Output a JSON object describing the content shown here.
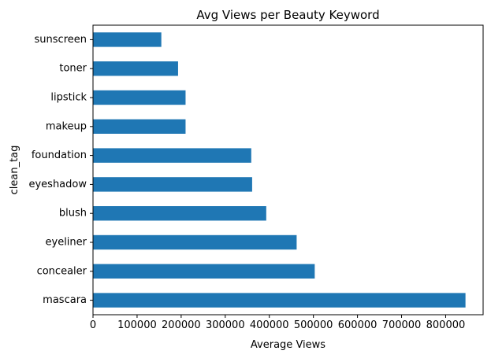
{
  "chart_data": {
    "type": "bar",
    "orientation": "horizontal",
    "title": "Avg Views per Beauty Keyword",
    "xlabel": "Average Views",
    "ylabel": "clean_tag",
    "categories": [
      "sunscreen",
      "toner",
      "lipstick",
      "makeup",
      "foundation",
      "eyeshadow",
      "blush",
      "eyeliner",
      "concealer",
      "mascara"
    ],
    "values": [
      155000,
      193000,
      210000,
      210000,
      359000,
      361000,
      393000,
      462000,
      503000,
      845000
    ],
    "xlim": [
      0,
      885000
    ],
    "xticks": [
      0,
      100000,
      200000,
      300000,
      400000,
      500000,
      600000,
      700000,
      800000
    ],
    "xtick_labels": [
      "0",
      "100000",
      "200000",
      "300000",
      "400000",
      "500000",
      "600000",
      "700000",
      "800000"
    ],
    "bar_color": "#1f77b4",
    "grid": false,
    "legend": "none"
  }
}
